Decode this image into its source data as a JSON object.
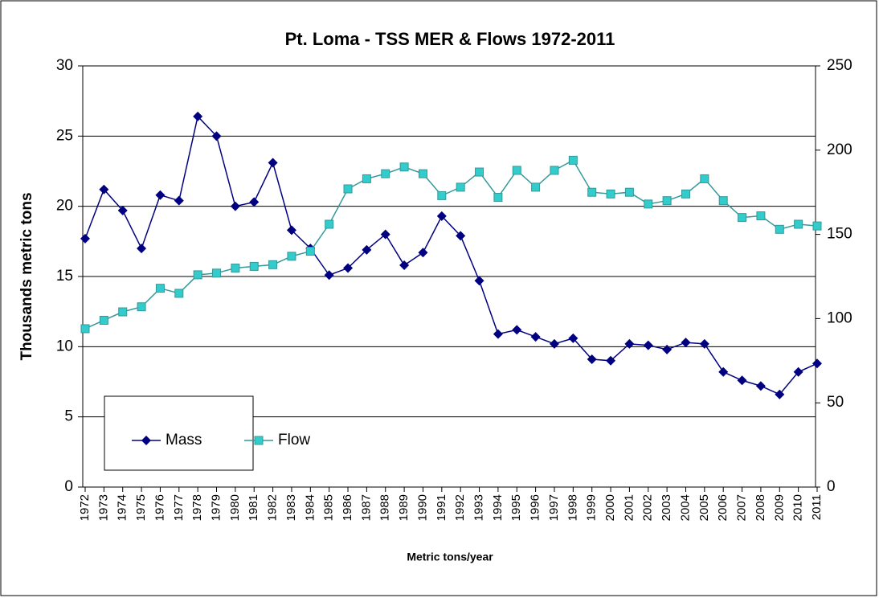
{
  "chart_data": {
    "type": "line",
    "title": "Pt. Loma - TSS MER & Flows 1972-2011",
    "x_label": "Metric tons/year",
    "y_label": "Thousands metric tons",
    "categories": [
      "1972",
      "1973",
      "1974",
      "1975",
      "1976",
      "1977",
      "1978",
      "1979",
      "1980",
      "1981",
      "1982",
      "1983",
      "1984",
      "1985",
      "1986",
      "1987",
      "1988",
      "1989",
      "1990",
      "1991",
      "1992",
      "1993",
      "1994",
      "1995",
      "1996",
      "1997",
      "1998",
      "1999",
      "2000",
      "2001",
      "2002",
      "2003",
      "2004",
      "2005",
      "2006",
      "2007",
      "2008",
      "2009",
      "2010",
      "2011"
    ],
    "series": [
      {
        "name": "Mass",
        "color": "#000080",
        "marker": "diamond",
        "values": [
          17.7,
          21.2,
          19.7,
          17.0,
          20.8,
          20.4,
          26.4,
          25.0,
          20.0,
          20.3,
          23.1,
          18.3,
          17.0,
          15.1,
          15.6,
          16.9,
          18.0,
          15.8,
          16.7,
          19.3,
          17.9,
          14.7,
          10.9,
          11.2,
          10.7,
          10.2,
          10.6,
          9.1,
          9.0,
          10.2,
          10.1,
          9.8,
          10.3,
          10.2,
          8.2,
          7.6,
          7.2,
          6.6,
          8.2,
          8.8
        ]
      },
      {
        "name": "Flow",
        "color": "#339999",
        "marker": "square",
        "marker_fill": "#33cccc",
        "axis": "y2",
        "values": [
          94,
          99,
          104,
          107,
          118,
          115,
          126,
          127,
          130,
          131,
          132,
          137,
          140,
          156,
          177,
          183,
          186,
          190,
          186,
          173,
          178,
          187,
          172,
          188,
          178,
          188,
          194,
          175,
          174,
          175,
          168,
          170,
          174,
          183,
          170,
          160,
          161,
          153,
          156,
          155
        ]
      }
    ],
    "ylim": [
      0,
      30
    ],
    "yticks": [
      0,
      5,
      10,
      15,
      20,
      25,
      30
    ],
    "y2lim": [
      0,
      250
    ],
    "y2ticks": [
      0,
      50,
      100,
      150,
      200,
      250
    ],
    "grid": true,
    "legend": "lower-left"
  }
}
